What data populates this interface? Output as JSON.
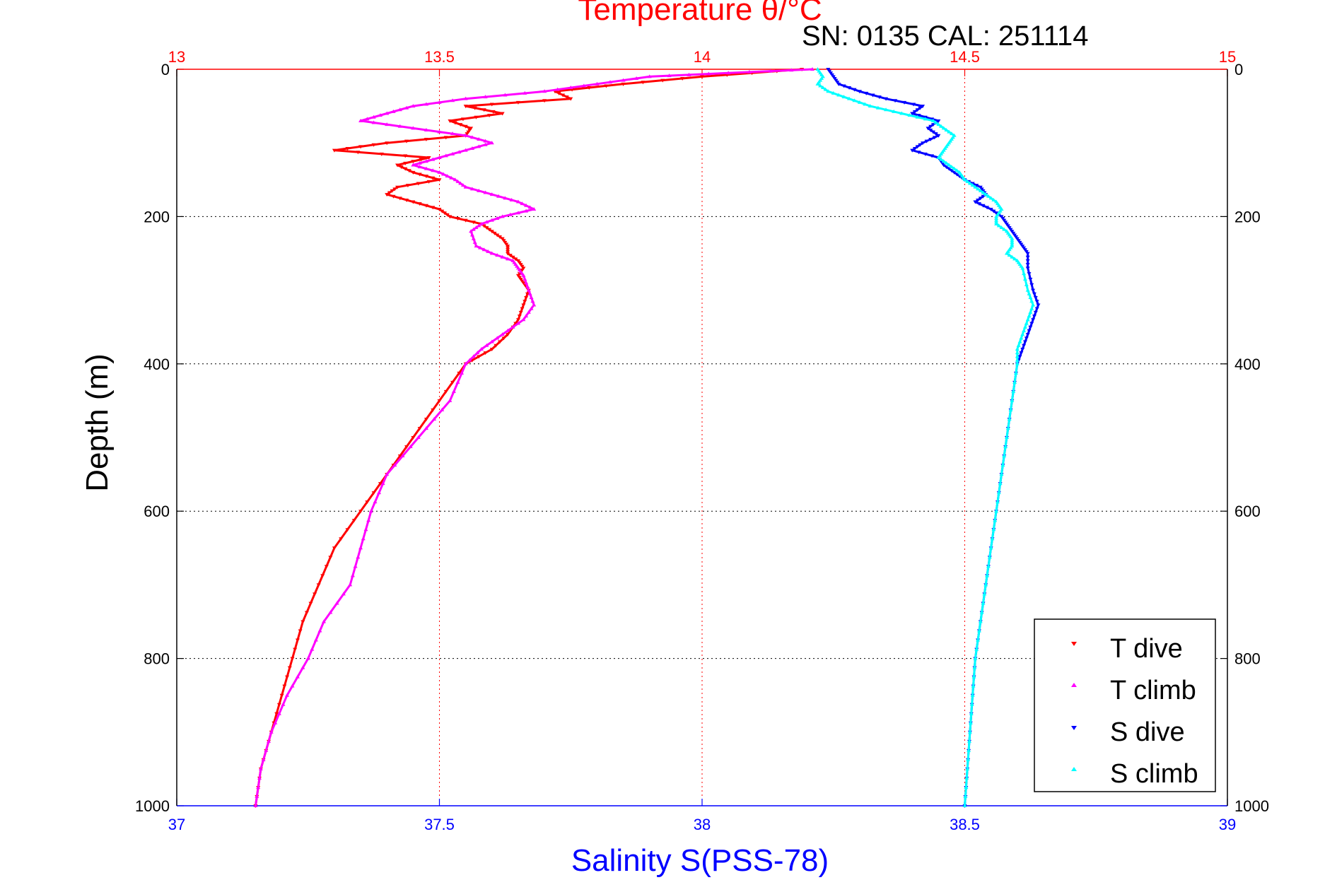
{
  "chart_data": {
    "type": "scatter",
    "title": "Temperature θ/°C",
    "subtitle": "SN: 0135  CAL: 251114",
    "ylabel": "Depth (m)",
    "xlabel": "Salinity S(PSS-78)",
    "y_reversed": true,
    "ylim": [
      0,
      1000
    ],
    "yticks": [
      "0",
      "200",
      "400",
      "600",
      "800",
      "1000"
    ],
    "x_top": {
      "label": "Temperature θ/°C",
      "lim": [
        13,
        15
      ],
      "ticks": [
        "13",
        "13.5",
        "14",
        "14.5",
        "15"
      ],
      "color": "#ff0000"
    },
    "x_bottom": {
      "label": "Salinity S(PSS-78)",
      "lim": [
        37,
        39
      ],
      "ticks": [
        "37",
        "37.5",
        "38",
        "38.5",
        "39"
      ],
      "color": "#0000ff"
    },
    "grid": true,
    "legend_position": "bottom-right",
    "legend": [
      "T dive",
      "T climb",
      "S dive",
      "S climb"
    ],
    "series": [
      {
        "name": "T dive",
        "axis": "temperature",
        "color": "#ff0000",
        "marker": "triangle-down",
        "points": [
          [
            14.19,
            0
          ],
          [
            14.0,
            10
          ],
          [
            13.85,
            20
          ],
          [
            13.72,
            30
          ],
          [
            13.75,
            40
          ],
          [
            13.55,
            50
          ],
          [
            13.62,
            60
          ],
          [
            13.52,
            70
          ],
          [
            13.56,
            80
          ],
          [
            13.55,
            90
          ],
          [
            13.4,
            100
          ],
          [
            13.3,
            110
          ],
          [
            13.48,
            120
          ],
          [
            13.42,
            130
          ],
          [
            13.45,
            140
          ],
          [
            13.5,
            150
          ],
          [
            13.42,
            160
          ],
          [
            13.4,
            170
          ],
          [
            13.45,
            180
          ],
          [
            13.5,
            190
          ],
          [
            13.52,
            200
          ],
          [
            13.58,
            210
          ],
          [
            13.6,
            220
          ],
          [
            13.62,
            230
          ],
          [
            13.63,
            240
          ],
          [
            13.63,
            250
          ],
          [
            13.65,
            260
          ],
          [
            13.66,
            270
          ],
          [
            13.65,
            280
          ],
          [
            13.66,
            290
          ],
          [
            13.67,
            300
          ],
          [
            13.66,
            320
          ],
          [
            13.65,
            340
          ],
          [
            13.63,
            360
          ],
          [
            13.6,
            380
          ],
          [
            13.55,
            400
          ],
          [
            13.5,
            450
          ],
          [
            13.45,
            500
          ],
          [
            13.4,
            550
          ],
          [
            13.35,
            600
          ],
          [
            13.3,
            650
          ],
          [
            13.27,
            700
          ],
          [
            13.24,
            750
          ],
          [
            13.22,
            800
          ],
          [
            13.2,
            850
          ],
          [
            13.18,
            900
          ],
          [
            13.16,
            950
          ],
          [
            13.15,
            1000
          ]
        ]
      },
      {
        "name": "T climb",
        "axis": "temperature",
        "color": "#ff00ff",
        "marker": "triangle-up",
        "points": [
          [
            14.21,
            0
          ],
          [
            14.05,
            5
          ],
          [
            13.9,
            10
          ],
          [
            13.8,
            20
          ],
          [
            13.7,
            30
          ],
          [
            13.55,
            40
          ],
          [
            13.45,
            50
          ],
          [
            13.4,
            60
          ],
          [
            13.35,
            70
          ],
          [
            13.45,
            80
          ],
          [
            13.55,
            90
          ],
          [
            13.6,
            100
          ],
          [
            13.55,
            110
          ],
          [
            13.5,
            120
          ],
          [
            13.45,
            130
          ],
          [
            13.5,
            140
          ],
          [
            13.53,
            150
          ],
          [
            13.55,
            160
          ],
          [
            13.6,
            170
          ],
          [
            13.65,
            180
          ],
          [
            13.68,
            190
          ],
          [
            13.62,
            200
          ],
          [
            13.58,
            210
          ],
          [
            13.56,
            220
          ],
          [
            13.57,
            240
          ],
          [
            13.6,
            250
          ],
          [
            13.64,
            260
          ],
          [
            13.65,
            270
          ],
          [
            13.66,
            280
          ],
          [
            13.67,
            300
          ],
          [
            13.68,
            320
          ],
          [
            13.66,
            340
          ],
          [
            13.62,
            360
          ],
          [
            13.58,
            380
          ],
          [
            13.55,
            400
          ],
          [
            13.52,
            450
          ],
          [
            13.46,
            500
          ],
          [
            13.4,
            550
          ],
          [
            13.37,
            600
          ],
          [
            13.35,
            650
          ],
          [
            13.33,
            700
          ],
          [
            13.28,
            750
          ],
          [
            13.25,
            800
          ],
          [
            13.21,
            850
          ],
          [
            13.18,
            900
          ],
          [
            13.16,
            950
          ],
          [
            13.15,
            1000
          ]
        ]
      },
      {
        "name": "S dive",
        "axis": "salinity",
        "color": "#0000ff",
        "marker": "triangle-down",
        "points": [
          [
            38.24,
            0
          ],
          [
            38.25,
            10
          ],
          [
            38.26,
            20
          ],
          [
            38.3,
            30
          ],
          [
            38.35,
            40
          ],
          [
            38.42,
            50
          ],
          [
            38.4,
            60
          ],
          [
            38.45,
            70
          ],
          [
            38.43,
            80
          ],
          [
            38.45,
            90
          ],
          [
            38.42,
            100
          ],
          [
            38.4,
            110
          ],
          [
            38.45,
            120
          ],
          [
            38.46,
            130
          ],
          [
            38.48,
            140
          ],
          [
            38.5,
            150
          ],
          [
            38.53,
            160
          ],
          [
            38.54,
            170
          ],
          [
            38.52,
            180
          ],
          [
            38.55,
            190
          ],
          [
            38.57,
            200
          ],
          [
            38.58,
            210
          ],
          [
            38.59,
            220
          ],
          [
            38.6,
            230
          ],
          [
            38.61,
            240
          ],
          [
            38.62,
            250
          ],
          [
            38.62,
            270
          ],
          [
            38.63,
            300
          ],
          [
            38.64,
            320
          ],
          [
            38.63,
            340
          ],
          [
            38.62,
            360
          ],
          [
            38.61,
            380
          ],
          [
            38.6,
            400
          ],
          [
            38.59,
            450
          ],
          [
            38.58,
            500
          ],
          [
            38.57,
            550
          ],
          [
            38.56,
            600
          ],
          [
            38.55,
            650
          ],
          [
            38.54,
            700
          ],
          [
            38.53,
            750
          ],
          [
            38.52,
            800
          ],
          [
            38.515,
            850
          ],
          [
            38.51,
            900
          ],
          [
            38.505,
            950
          ],
          [
            38.5,
            1000
          ]
        ]
      },
      {
        "name": "S climb",
        "axis": "salinity",
        "color": "#00ffff",
        "marker": "triangle-up",
        "points": [
          [
            38.22,
            0
          ],
          [
            38.23,
            10
          ],
          [
            38.22,
            20
          ],
          [
            38.24,
            30
          ],
          [
            38.28,
            40
          ],
          [
            38.32,
            50
          ],
          [
            38.38,
            60
          ],
          [
            38.44,
            70
          ],
          [
            38.46,
            80
          ],
          [
            38.48,
            90
          ],
          [
            38.47,
            100
          ],
          [
            38.46,
            110
          ],
          [
            38.45,
            120
          ],
          [
            38.47,
            130
          ],
          [
            38.49,
            140
          ],
          [
            38.5,
            150
          ],
          [
            38.52,
            160
          ],
          [
            38.54,
            170
          ],
          [
            38.56,
            180
          ],
          [
            38.57,
            190
          ],
          [
            38.56,
            200
          ],
          [
            38.56,
            210
          ],
          [
            38.58,
            220
          ],
          [
            38.59,
            230
          ],
          [
            38.59,
            240
          ],
          [
            38.58,
            250
          ],
          [
            38.6,
            260
          ],
          [
            38.61,
            270
          ],
          [
            38.62,
            300
          ],
          [
            38.63,
            320
          ],
          [
            38.62,
            340
          ],
          [
            38.61,
            360
          ],
          [
            38.6,
            380
          ],
          [
            38.6,
            400
          ],
          [
            38.59,
            450
          ],
          [
            38.58,
            500
          ],
          [
            38.57,
            550
          ],
          [
            38.56,
            600
          ],
          [
            38.55,
            650
          ],
          [
            38.54,
            700
          ],
          [
            38.53,
            750
          ],
          [
            38.52,
            800
          ],
          [
            38.515,
            850
          ],
          [
            38.51,
            900
          ],
          [
            38.505,
            950
          ],
          [
            38.5,
            1000
          ]
        ]
      }
    ]
  }
}
